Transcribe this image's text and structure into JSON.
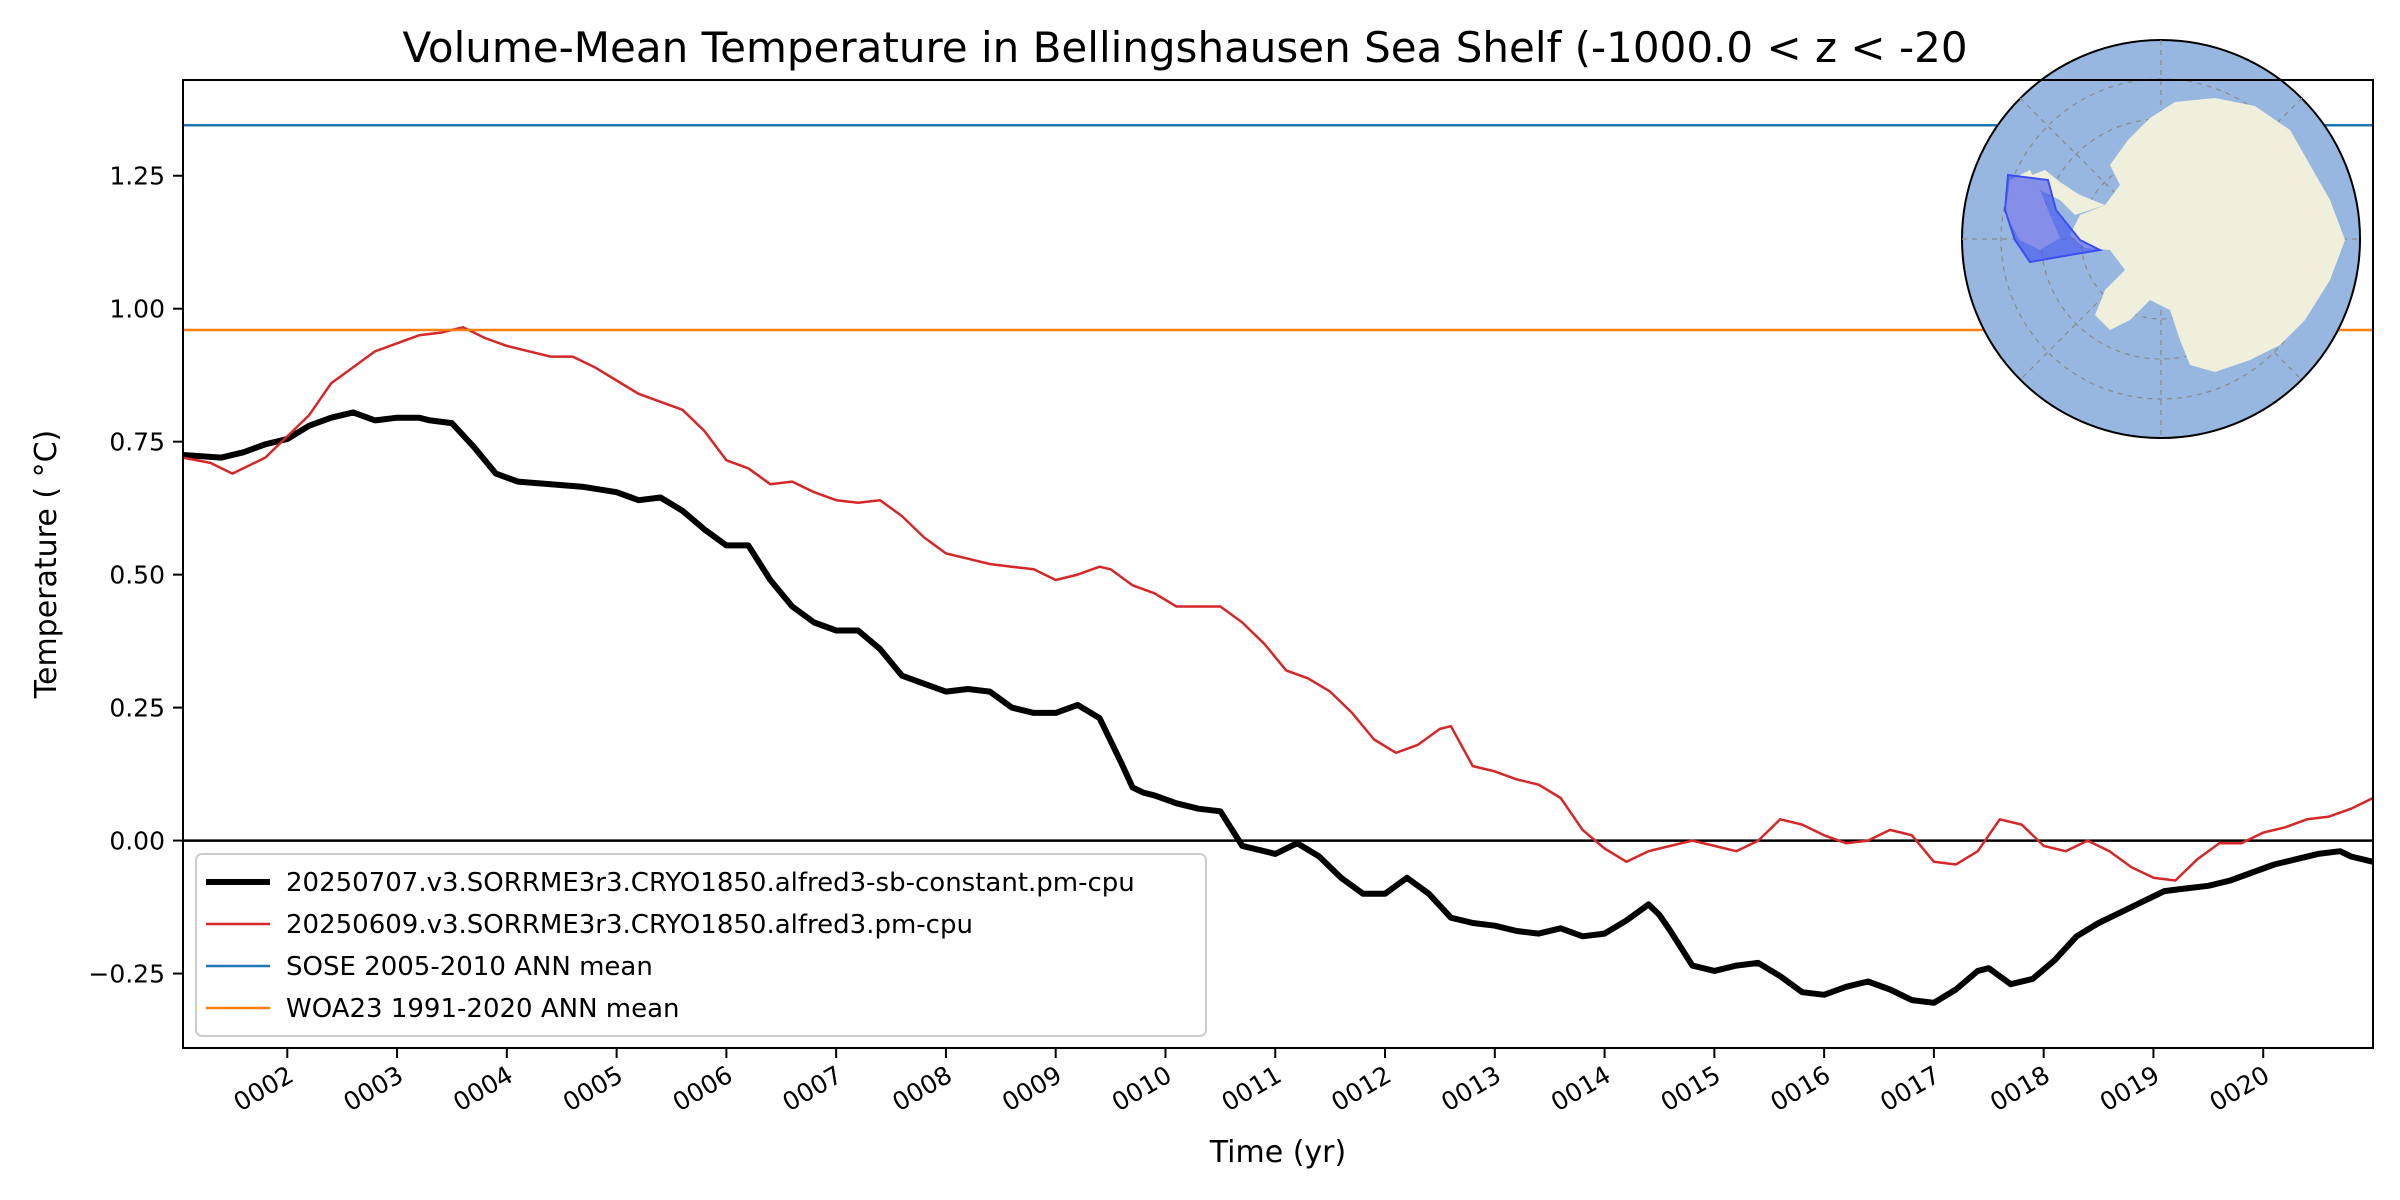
{
  "chart_data": {
    "type": "line",
    "title": "Volume-Mean Temperature in Bellingshausen Sea Shelf (-1000.0 < z < -20",
    "xlabel": "Time (yr)",
    "ylabel": "Temperature ( °C)",
    "xlim": [
      1.05,
      21.0
    ],
    "ylim": [
      -0.39,
      1.43
    ],
    "x_ticks": [
      {
        "value": 2,
        "label": "0002"
      },
      {
        "value": 3,
        "label": "0003"
      },
      {
        "value": 4,
        "label": "0004"
      },
      {
        "value": 5,
        "label": "0005"
      },
      {
        "value": 6,
        "label": "0006"
      },
      {
        "value": 7,
        "label": "0007"
      },
      {
        "value": 8,
        "label": "0008"
      },
      {
        "value": 9,
        "label": "0009"
      },
      {
        "value": 10,
        "label": "0010"
      },
      {
        "value": 11,
        "label": "0011"
      },
      {
        "value": 12,
        "label": "0012"
      },
      {
        "value": 13,
        "label": "0013"
      },
      {
        "value": 14,
        "label": "0014"
      },
      {
        "value": 15,
        "label": "0015"
      },
      {
        "value": 16,
        "label": "0016"
      },
      {
        "value": 17,
        "label": "0017"
      },
      {
        "value": 18,
        "label": "0018"
      },
      {
        "value": 19,
        "label": "0019"
      },
      {
        "value": 20,
        "label": "0020"
      }
    ],
    "y_ticks": [
      {
        "value": -0.25,
        "label": "−0.25"
      },
      {
        "value": 0.0,
        "label": "0.00"
      },
      {
        "value": 0.25,
        "label": "0.25"
      },
      {
        "value": 0.5,
        "label": "0.50"
      },
      {
        "value": 0.75,
        "label": "0.75"
      },
      {
        "value": 1.0,
        "label": "1.00"
      },
      {
        "value": 1.25,
        "label": "1.25"
      }
    ],
    "grid": false,
    "legend_position": "lower-left",
    "zero_line": {
      "y": 0.0,
      "color": "#000000"
    },
    "series": [
      {
        "name": "20250707.v3.SORRME3r3.CRYO1850.alfred3-sb-constant.pm-cpu",
        "color": "#000000",
        "style": "thick",
        "x": [
          1.05,
          1.4,
          1.6,
          1.8,
          2.0,
          2.2,
          2.4,
          2.6,
          2.8,
          3.0,
          3.2,
          3.3,
          3.5,
          3.7,
          3.9,
          4.1,
          4.4,
          4.7,
          5.0,
          5.2,
          5.4,
          5.6,
          5.8,
          6.0,
          6.2,
          6.4,
          6.6,
          6.8,
          7.0,
          7.2,
          7.4,
          7.6,
          7.8,
          8.0,
          8.2,
          8.4,
          8.6,
          8.8,
          9.0,
          9.2,
          9.4,
          9.6,
          9.7,
          9.8,
          9.9,
          10.1,
          10.3,
          10.5,
          10.7,
          10.9,
          11.0,
          11.2,
          11.4,
          11.6,
          11.8,
          12.0,
          12.2,
          12.4,
          12.6,
          12.8,
          13.0,
          13.2,
          13.4,
          13.6,
          13.8,
          14.0,
          14.2,
          14.4,
          14.5,
          14.6,
          14.8,
          15.0,
          15.2,
          15.4,
          15.6,
          15.8,
          16.0,
          16.2,
          16.4,
          16.6,
          16.8,
          17.0,
          17.2,
          17.4,
          17.5,
          17.7,
          17.9,
          18.1,
          18.3,
          18.5,
          18.7,
          18.9,
          19.1,
          19.3,
          19.5,
          19.7,
          19.9,
          20.1,
          20.3,
          20.5,
          20.7,
          20.8,
          21.0
        ],
        "y": [
          0.725,
          0.72,
          0.73,
          0.745,
          0.755,
          0.78,
          0.795,
          0.805,
          0.79,
          0.795,
          0.795,
          0.79,
          0.785,
          0.74,
          0.69,
          0.675,
          0.67,
          0.665,
          0.655,
          0.64,
          0.645,
          0.62,
          0.585,
          0.555,
          0.555,
          0.49,
          0.44,
          0.41,
          0.395,
          0.395,
          0.36,
          0.31,
          0.295,
          0.28,
          0.285,
          0.28,
          0.25,
          0.24,
          0.24,
          0.255,
          0.23,
          0.145,
          0.1,
          0.09,
          0.085,
          0.07,
          0.06,
          0.055,
          -0.01,
          -0.02,
          -0.025,
          -0.005,
          -0.03,
          -0.07,
          -0.1,
          -0.1,
          -0.07,
          -0.1,
          -0.145,
          -0.155,
          -0.16,
          -0.17,
          -0.175,
          -0.165,
          -0.18,
          -0.175,
          -0.15,
          -0.12,
          -0.14,
          -0.17,
          -0.235,
          -0.245,
          -0.235,
          -0.23,
          -0.255,
          -0.285,
          -0.29,
          -0.275,
          -0.265,
          -0.28,
          -0.3,
          -0.305,
          -0.28,
          -0.245,
          -0.24,
          -0.27,
          -0.26,
          -0.225,
          -0.18,
          -0.155,
          -0.135,
          -0.115,
          -0.095,
          -0.09,
          -0.085,
          -0.075,
          -0.06,
          -0.045,
          -0.035,
          -0.025,
          -0.02,
          -0.03,
          -0.04
        ]
      },
      {
        "name": "20250609.v3.SORRME3r3.CRYO1850.alfred3.pm-cpu",
        "color": "#d62728",
        "style": "thin",
        "x": [
          1.05,
          1.3,
          1.5,
          1.8,
          2.0,
          2.2,
          2.4,
          2.6,
          2.8,
          3.0,
          3.2,
          3.4,
          3.6,
          3.8,
          4.0,
          4.2,
          4.4,
          4.6,
          4.8,
          5.0,
          5.2,
          5.4,
          5.6,
          5.8,
          6.0,
          6.2,
          6.4,
          6.6,
          6.8,
          7.0,
          7.2,
          7.4,
          7.6,
          7.8,
          8.0,
          8.2,
          8.4,
          8.6,
          8.8,
          9.0,
          9.2,
          9.4,
          9.5,
          9.7,
          9.9,
          10.1,
          10.3,
          10.5,
          10.7,
          10.9,
          11.1,
          11.3,
          11.5,
          11.7,
          11.9,
          12.1,
          12.3,
          12.5,
          12.6,
          12.8,
          13.0,
          13.2,
          13.4,
          13.6,
          13.8,
          14.0,
          14.2,
          14.4,
          14.6,
          14.8,
          15.0,
          15.2,
          15.4,
          15.6,
          15.8,
          16.0,
          16.2,
          16.4,
          16.6,
          16.8,
          17.0,
          17.2,
          17.4,
          17.6,
          17.8,
          18.0,
          18.2,
          18.4,
          18.6,
          18.8,
          19.0,
          19.2,
          19.4,
          19.6,
          19.8,
          20.0,
          20.2,
          20.4,
          20.6,
          20.8,
          21.0
        ],
        "y": [
          0.72,
          0.71,
          0.69,
          0.72,
          0.76,
          0.8,
          0.86,
          0.89,
          0.92,
          0.935,
          0.95,
          0.955,
          0.965,
          0.945,
          0.93,
          0.92,
          0.91,
          0.91,
          0.89,
          0.865,
          0.84,
          0.825,
          0.81,
          0.77,
          0.715,
          0.7,
          0.67,
          0.675,
          0.655,
          0.64,
          0.635,
          0.64,
          0.61,
          0.57,
          0.54,
          0.53,
          0.52,
          0.515,
          0.51,
          0.49,
          0.5,
          0.515,
          0.51,
          0.48,
          0.465,
          0.44,
          0.44,
          0.44,
          0.41,
          0.37,
          0.32,
          0.305,
          0.28,
          0.24,
          0.19,
          0.165,
          0.18,
          0.21,
          0.215,
          0.14,
          0.13,
          0.115,
          0.105,
          0.08,
          0.02,
          -0.015,
          -0.04,
          -0.02,
          -0.01,
          0.0,
          -0.01,
          -0.02,
          0.0,
          0.04,
          0.03,
          0.01,
          -0.005,
          0.0,
          0.02,
          0.01,
          -0.04,
          -0.045,
          -0.02,
          0.04,
          0.03,
          -0.01,
          -0.02,
          0.0,
          -0.02,
          -0.05,
          -0.07,
          -0.075,
          -0.035,
          -0.005,
          -0.005,
          0.015,
          0.025,
          0.04,
          0.045,
          0.06,
          0.08
        ]
      },
      {
        "name": "SOSE 2005-2010 ANN mean",
        "color": "#1f77b4",
        "style": "hline",
        "x": [
          1.05,
          21.0
        ],
        "y": [
          1.345,
          1.345
        ]
      },
      {
        "name": "WOA23 1991-2020 ANN mean",
        "color": "#ff7f0e",
        "style": "hline",
        "x": [
          1.05,
          21.0
        ],
        "y": [
          0.96,
          0.96
        ]
      }
    ],
    "inset_map": {
      "ocean_color": "#97b7e0",
      "land_color": "#efefdc",
      "region_color": "#3d4ef0"
    }
  }
}
